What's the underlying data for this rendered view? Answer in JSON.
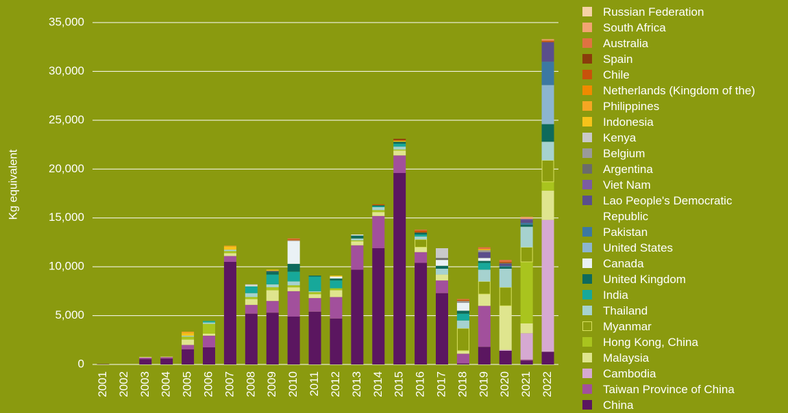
{
  "chart_data": {
    "type": "stacked_bar",
    "y_label": "Kg equivalent",
    "categories": [
      "2001",
      "2002",
      "2003",
      "2004",
      "2005",
      "2006",
      "2007",
      "2008",
      "2009",
      "2010",
      "2011",
      "2012",
      "2013",
      "2014",
      "2015",
      "2016",
      "2017",
      "2018",
      "2019",
      "2020",
      "2021",
      "2022"
    ],
    "ylim": [
      0,
      35000
    ],
    "yticks": [
      0,
      {
        "value": 5000,
        "label": "5,000"
      },
      {
        "value": 10000,
        "label": "10,000"
      },
      {
        "value": 15000,
        "label": "15,000"
      },
      {
        "value": 20000,
        "label": "20,000"
      },
      {
        "value": 25000,
        "label": "25,000"
      },
      {
        "value": 30000,
        "label": "30,000"
      },
      {
        "value": 35000,
        "label": "35,000"
      }
    ],
    "grid": true,
    "legend": "right",
    "series": [
      {
        "name": "China",
        "color": "#5b1660",
        "values": [
          30,
          0,
          550,
          600,
          1550,
          1750,
          10500,
          5200,
          5300,
          4900,
          5400,
          4700,
          9700,
          11900,
          19600,
          10400,
          7300,
          100,
          1800,
          1400,
          400,
          1300
        ]
      },
      {
        "name": "Taiwan Province of China",
        "color": "#a2509c",
        "values": [
          0,
          0,
          150,
          150,
          450,
          1200,
          600,
          900,
          1200,
          2600,
          1400,
          2200,
          2500,
          3300,
          1800,
          1100,
          1300,
          1000,
          4200,
          0,
          100,
          0
        ]
      },
      {
        "name": "Cambodia",
        "color": "#d6a9d2",
        "values": [
          0,
          0,
          0,
          0,
          0,
          0,
          0,
          0,
          0,
          0,
          0,
          0,
          0,
          0,
          0,
          0,
          0,
          0,
          0,
          100,
          2700,
          13500
        ]
      },
      {
        "name": "Malaysia",
        "color": "#dfe58e",
        "values": [
          0,
          0,
          70,
          50,
          550,
          200,
          300,
          600,
          1100,
          400,
          400,
          700,
          400,
          400,
          500,
          500,
          600,
          300,
          1200,
          4500,
          1000,
          3000
        ]
      },
      {
        "name": "Hong Kong, China",
        "color": "#a9c41e",
        "values": [
          0,
          0,
          0,
          0,
          300,
          1000,
          200,
          200,
          300,
          200,
          200,
          200,
          100,
          200,
          100,
          0,
          0,
          0,
          0,
          0,
          6300,
          900
        ]
      },
      {
        "name": "Myanmar",
        "color": "#8c9c0e",
        "outline": "#d8e160",
        "values": [
          0,
          0,
          0,
          0,
          0,
          0,
          0,
          0,
          0,
          0,
          0,
          0,
          0,
          0,
          0,
          800,
          0,
          2300,
          1300,
          1900,
          1500,
          2200
        ]
      },
      {
        "name": "Thailand",
        "color": "#a6d2cf",
        "values": [
          0,
          0,
          0,
          0,
          100,
          150,
          150,
          400,
          300,
          400,
          100,
          0,
          200,
          300,
          300,
          300,
          600,
          800,
          1200,
          1900,
          2100,
          1900
        ]
      },
      {
        "name": "India",
        "color": "#17a89a",
        "values": [
          0,
          0,
          0,
          0,
          0,
          150,
          0,
          700,
          1000,
          1000,
          1500,
          800,
          0,
          100,
          300,
          200,
          0,
          700,
          700,
          0,
          0,
          0
        ]
      },
      {
        "name": "United Kingdom",
        "color": "#0e6a5c",
        "values": [
          0,
          0,
          0,
          0,
          0,
          0,
          0,
          0,
          300,
          800,
          100,
          200,
          300,
          100,
          200,
          200,
          300,
          300,
          200,
          200,
          200,
          1800
        ]
      },
      {
        "name": "Canada",
        "color": "#eaf1f5",
        "values": [
          0,
          0,
          0,
          0,
          0,
          0,
          0,
          100,
          0,
          2300,
          0,
          200,
          100,
          0,
          0,
          0,
          600,
          800,
          300,
          0,
          0,
          0
        ]
      },
      {
        "name": "United States",
        "color": "#8cb5d0",
        "values": [
          0,
          0,
          0,
          0,
          0,
          0,
          0,
          0,
          0,
          0,
          0,
          0,
          0,
          0,
          0,
          0,
          0,
          0,
          0,
          0,
          0,
          4000
        ]
      },
      {
        "name": "Pakistan",
        "color": "#3c78a2",
        "values": [
          0,
          0,
          0,
          0,
          0,
          0,
          0,
          0,
          0,
          0,
          0,
          0,
          0,
          0,
          0,
          0,
          0,
          0,
          0,
          100,
          200,
          2400
        ]
      },
      {
        "name": "Lao People's Democratic Republic",
        "color": "#5a4e8c",
        "values": [
          0,
          0,
          0,
          0,
          0,
          0,
          0,
          0,
          0,
          0,
          0,
          0,
          0,
          0,
          0,
          0,
          0,
          0,
          600,
          200,
          300,
          2000
        ]
      },
      {
        "name": "Viet Nam",
        "color": "#7c5ca2",
        "values": [
          0,
          0,
          0,
          0,
          0,
          0,
          0,
          0,
          0,
          0,
          0,
          0,
          0,
          0,
          0,
          0,
          0,
          0,
          0,
          0,
          100,
          0
        ]
      },
      {
        "name": "Argentina",
        "color": "#6b6b6b",
        "values": [
          0,
          0,
          0,
          0,
          0,
          0,
          0,
          0,
          100,
          0,
          0,
          0,
          0,
          0,
          0,
          0,
          200,
          0,
          0,
          100,
          0,
          0
        ]
      },
      {
        "name": "Belgium",
        "color": "#9a9a9a",
        "values": [
          0,
          0,
          0,
          0,
          0,
          0,
          0,
          0,
          0,
          0,
          0,
          0,
          0,
          0,
          0,
          0,
          0,
          200,
          200,
          0,
          0,
          0
        ]
      },
      {
        "name": "Kenya",
        "color": "#c9c9c9",
        "values": [
          0,
          0,
          0,
          0,
          0,
          0,
          0,
          100,
          0,
          100,
          0,
          0,
          0,
          0,
          0,
          0,
          1000,
          0,
          0,
          0,
          0,
          0
        ]
      },
      {
        "name": "Indonesia",
        "color": "#f6c31a",
        "values": [
          0,
          0,
          0,
          0,
          250,
          0,
          300,
          0,
          100,
          0,
          0,
          100,
          0,
          0,
          100,
          0,
          0,
          0,
          100,
          0,
          0,
          0
        ]
      },
      {
        "name": "Philippines",
        "color": "#f6a623",
        "values": [
          0,
          0,
          0,
          0,
          150,
          0,
          100,
          0,
          0,
          0,
          0,
          0,
          0,
          0,
          0,
          0,
          0,
          0,
          0,
          0,
          0,
          0
        ]
      },
      {
        "name": "Netherlands (Kingdom of the)",
        "color": "#f08a00",
        "values": [
          0,
          0,
          0,
          0,
          0,
          0,
          0,
          0,
          0,
          0,
          0,
          0,
          0,
          0,
          0,
          0,
          0,
          0,
          0,
          0,
          0,
          0
        ]
      },
      {
        "name": "Chile",
        "color": "#c8520b",
        "values": [
          0,
          0,
          0,
          0,
          0,
          0,
          0,
          0,
          0,
          100,
          0,
          0,
          0,
          100,
          100,
          200,
          0,
          100,
          0,
          100,
          0,
          100
        ]
      },
      {
        "name": "Spain",
        "color": "#8a3c0b",
        "values": [
          0,
          0,
          0,
          0,
          0,
          0,
          0,
          0,
          0,
          0,
          0,
          0,
          0,
          0,
          100,
          0,
          0,
          0,
          0,
          0,
          0,
          0
        ]
      },
      {
        "name": "Australia",
        "color": "#e07242",
        "values": [
          0,
          0,
          0,
          0,
          0,
          0,
          0,
          0,
          0,
          100,
          0,
          0,
          0,
          0,
          0,
          100,
          0,
          100,
          200,
          200,
          0,
          100
        ]
      },
      {
        "name": "South Africa",
        "color": "#f2a472",
        "values": [
          0,
          0,
          0,
          0,
          0,
          0,
          0,
          0,
          0,
          0,
          0,
          0,
          0,
          0,
          0,
          0,
          0,
          0,
          0,
          0,
          200,
          100
        ]
      },
      {
        "name": "Russian Federation",
        "color": "#f6d2a6",
        "values": [
          0,
          0,
          0,
          0,
          0,
          0,
          0,
          0,
          0,
          0,
          0,
          0,
          0,
          0,
          0,
          0,
          0,
          0,
          0,
          0,
          0,
          0
        ]
      }
    ]
  }
}
